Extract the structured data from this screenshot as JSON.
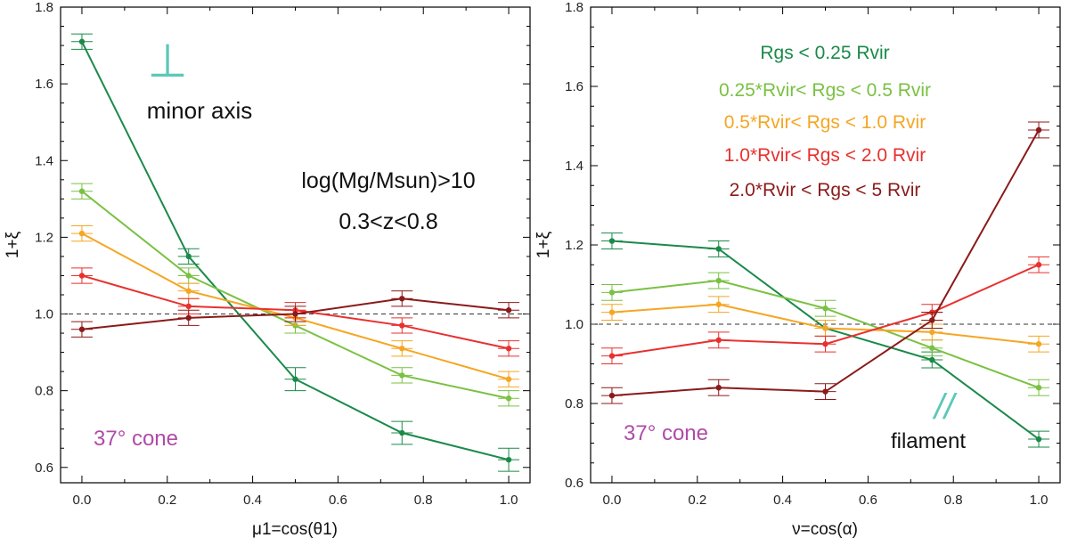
{
  "chart_data": [
    {
      "type": "line",
      "id": "left",
      "xlabel": "μ1=cos(θ1)",
      "ylabel": "1+ξ",
      "xlim": [
        -0.05,
        1.05
      ],
      "ylim": [
        0.56,
        1.8
      ],
      "xticks": [
        0.0,
        0.2,
        0.4,
        0.6,
        0.8,
        1.0
      ],
      "xtick_labels": [
        "0.0",
        "0.2",
        "0.4",
        "0.6",
        "0.8",
        "1.0"
      ],
      "yticks": [
        0.6,
        0.8,
        1.0,
        1.2,
        1.4,
        1.6,
        1.8
      ],
      "ytick_labels": [
        "0.6",
        "0.8",
        "1.0",
        "1.2",
        "1.4",
        "1.6",
        "1.8"
      ],
      "reference_line": 1.0,
      "x": [
        0.0,
        0.25,
        0.5,
        0.75,
        1.0
      ],
      "series": [
        {
          "name": "Rgs < 0.25 Rvir",
          "color": "#1a8a4a",
          "values": [
            1.71,
            1.15,
            0.83,
            0.69,
            0.62
          ],
          "errors": [
            0.02,
            0.02,
            0.03,
            0.03,
            0.03
          ]
        },
        {
          "name": "0.25*Rvir< Rgs < 0.5 Rvir",
          "color": "#7ac143",
          "values": [
            1.32,
            1.1,
            0.97,
            0.84,
            0.78
          ],
          "errors": [
            0.02,
            0.02,
            0.02,
            0.02,
            0.02
          ]
        },
        {
          "name": "0.5*Rvir< Rgs < 1.0 Rvir",
          "color": "#f5a623",
          "values": [
            1.21,
            1.06,
            0.99,
            0.91,
            0.83
          ],
          "errors": [
            0.02,
            0.02,
            0.02,
            0.02,
            0.02
          ]
        },
        {
          "name": "1.0*Rvir< Rgs < 2.0 Rvir",
          "color": "#e8312f",
          "values": [
            1.1,
            1.02,
            1.01,
            0.97,
            0.91
          ],
          "errors": [
            0.02,
            0.02,
            0.02,
            0.02,
            0.02
          ]
        },
        {
          "name": "2.0*Rvir < Rgs < 5 Rvir",
          "color": "#8b1a1a",
          "values": [
            0.96,
            0.99,
            1.0,
            1.04,
            1.01
          ],
          "errors": [
            0.02,
            0.02,
            0.02,
            0.02,
            0.02
          ]
        }
      ]
    },
    {
      "type": "line",
      "id": "right",
      "xlabel": "ν=cos(α)",
      "ylabel": "1+ξ",
      "xlim": [
        -0.05,
        1.05
      ],
      "ylim": [
        0.6,
        1.8
      ],
      "xticks": [
        0.0,
        0.2,
        0.4,
        0.6,
        0.8,
        1.0
      ],
      "xtick_labels": [
        "0.0",
        "0.2",
        "0.4",
        "0.6",
        "0.8",
        "1.0"
      ],
      "yticks": [
        0.6,
        0.8,
        1.0,
        1.2,
        1.4,
        1.6,
        1.8
      ],
      "ytick_labels": [
        "0.6",
        "0.8",
        "1.0",
        "1.2",
        "1.4",
        "1.6",
        "1.8"
      ],
      "reference_line": 1.0,
      "x": [
        0.0,
        0.25,
        0.5,
        0.75,
        1.0
      ],
      "series": [
        {
          "name": "Rgs < 0.25 Rvir",
          "color": "#1a8a4a",
          "values": [
            1.21,
            1.19,
            0.99,
            0.91,
            0.71
          ],
          "errors": [
            0.02,
            0.02,
            0.02,
            0.02,
            0.02
          ]
        },
        {
          "name": "0.25*Rvir< Rgs < 0.5 Rvir",
          "color": "#7ac143",
          "values": [
            1.08,
            1.11,
            1.04,
            0.94,
            0.84
          ],
          "errors": [
            0.02,
            0.02,
            0.02,
            0.02,
            0.02
          ]
        },
        {
          "name": "0.5*Rvir< Rgs < 1.0 Rvir",
          "color": "#f5a623",
          "values": [
            1.03,
            1.05,
            0.99,
            0.98,
            0.95
          ],
          "errors": [
            0.02,
            0.02,
            0.02,
            0.02,
            0.02
          ]
        },
        {
          "name": "1.0*Rvir< Rgs < 2.0 Rvir",
          "color": "#e8312f",
          "values": [
            0.92,
            0.96,
            0.95,
            1.03,
            1.15
          ],
          "errors": [
            0.02,
            0.02,
            0.02,
            0.02,
            0.02
          ]
        },
        {
          "name": "2.0*Rvir < Rgs < 5 Rvir",
          "color": "#8b1a1a",
          "values": [
            0.82,
            0.84,
            0.83,
            1.01,
            1.49
          ],
          "errors": [
            0.02,
            0.02,
            0.02,
            0.02,
            0.02
          ]
        }
      ]
    }
  ],
  "annotations": {
    "minor_axis_label": "minor axis",
    "minor_axis_symbol": "⊥",
    "mass_cut": "log(Mg/Msun)>10",
    "redshift_range": "0.3<z<0.8",
    "cone_left": "37° cone",
    "cone_right": "37° cone",
    "filament_label": "filament",
    "filament_symbol": "//"
  },
  "legend": [
    "Rgs < 0.25 Rvir",
    "0.25*Rvir< Rgs < 0.5 Rvir",
    "0.5*Rvir< Rgs < 1.0 Rvir",
    "1.0*Rvir< Rgs < 2.0 Rvir",
    "2.0*Rvir < Rgs < 5 Rvir"
  ],
  "colors": {
    "cone": "#b04aa8",
    "symbol": "#5cc8b8",
    "green": "#1a8a4a",
    "lightgreen": "#7ac143",
    "orange": "#f5a623",
    "red": "#e8312f",
    "darkred": "#8b1a1a"
  }
}
